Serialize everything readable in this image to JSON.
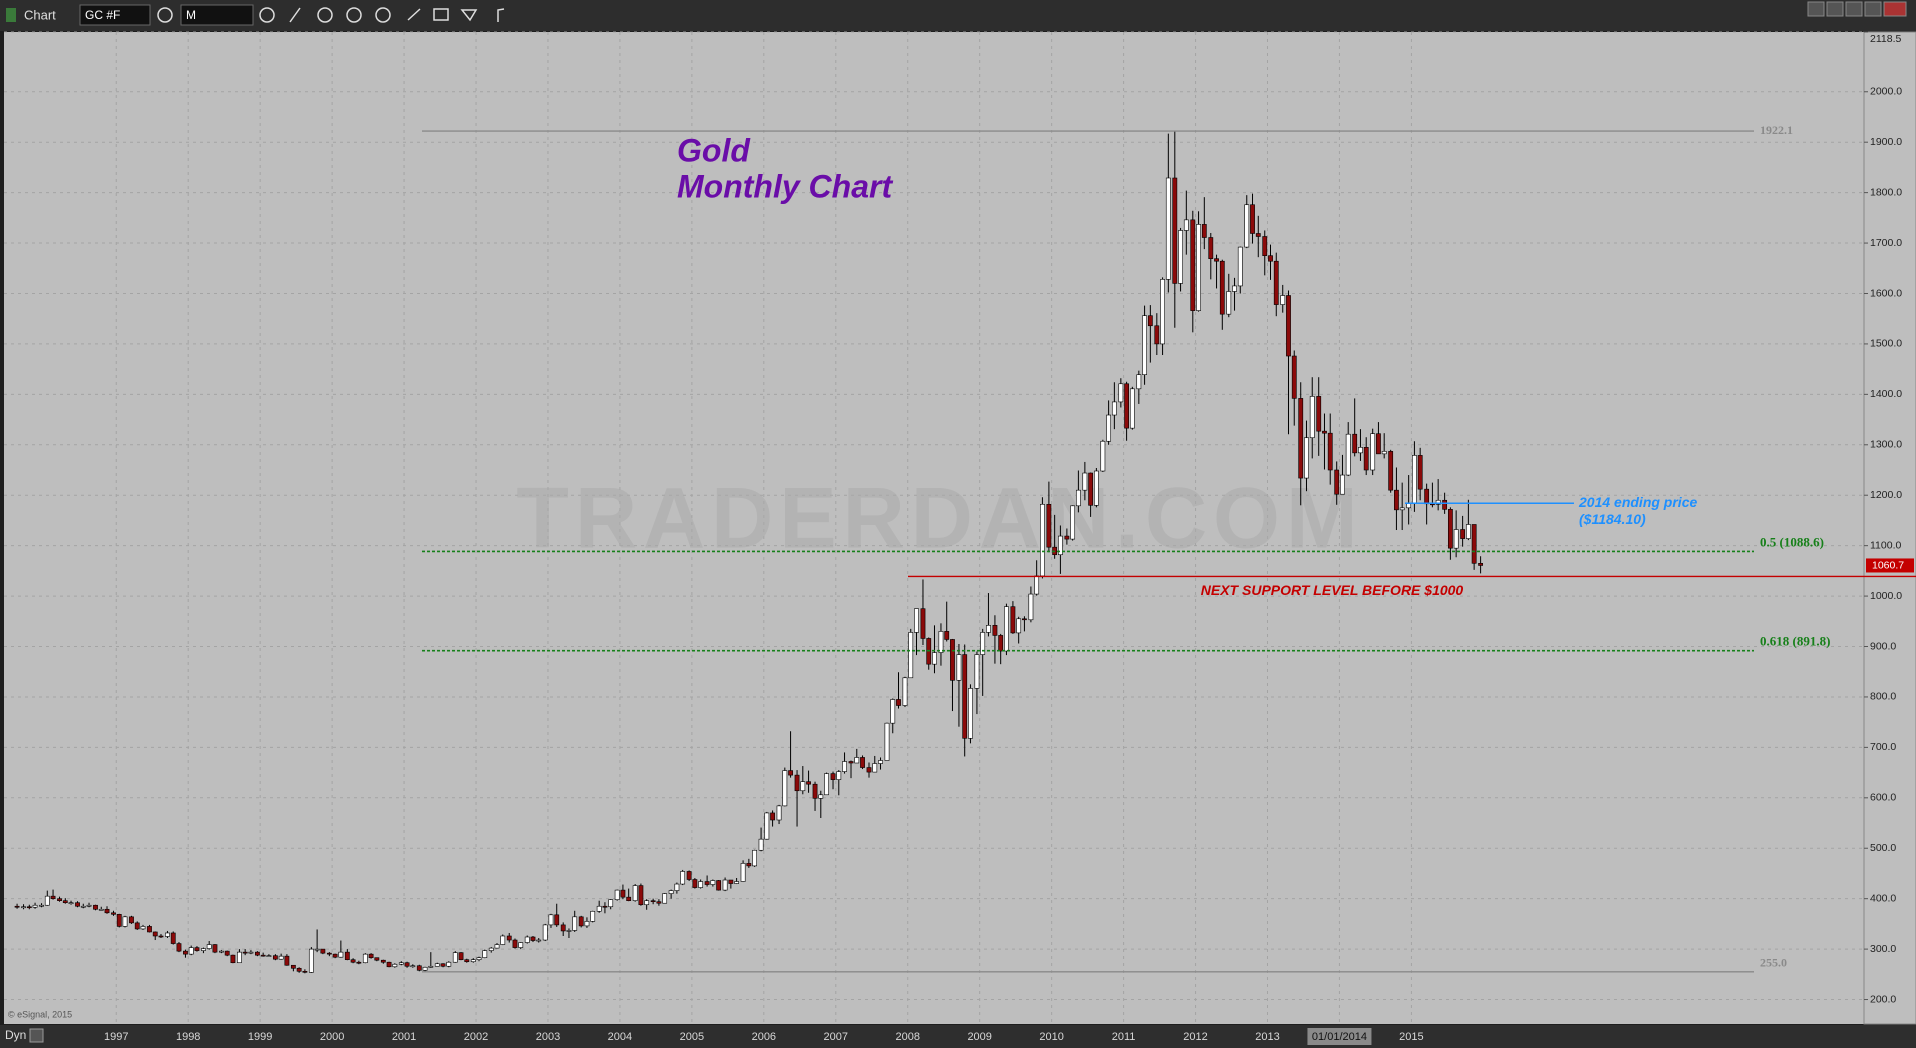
{
  "toolbar": {
    "app": "Chart",
    "symbol": "GC #F",
    "interval": "M"
  },
  "footer": {
    "copyright": "© eSignal, 2015",
    "mode": "Dyn"
  },
  "chart_data": {
    "type": "candlestick",
    "title": "Gold",
    "subtitle": "Monthly Chart",
    "watermark": "TRADERDAN.COM",
    "x": [
      1995.58,
      1995.67,
      1995.75,
      1995.83,
      1995.92,
      1996.0,
      1996.08,
      1996.17,
      1996.25,
      1996.33,
      1996.42,
      1996.5,
      1996.58,
      1996.67,
      1996.75,
      1996.83,
      1996.92,
      1997.0,
      1997.08,
      1997.17,
      1997.25,
      1997.33,
      1997.42,
      1997.5,
      1997.58,
      1997.67,
      1997.75,
      1997.83,
      1997.92,
      1998.0,
      1998.08,
      1998.17,
      1998.25,
      1998.33,
      1998.42,
      1998.5,
      1998.58,
      1998.67,
      1998.75,
      1998.83,
      1998.92,
      1999.0,
      1999.08,
      1999.17,
      1999.25,
      1999.33,
      1999.42,
      1999.5,
      1999.58,
      1999.67,
      1999.75,
      1999.83,
      1999.92,
      2000.0,
      2000.08,
      2000.17,
      2000.25,
      2000.33,
      2000.42,
      2000.5,
      2000.58,
      2000.67,
      2000.75,
      2000.83,
      2000.92,
      2001.0,
      2001.08,
      2001.17,
      2001.25,
      2001.33,
      2001.42,
      2001.5,
      2001.58,
      2001.67,
      2001.75,
      2001.83,
      2001.92,
      2002.0,
      2002.08,
      2002.17,
      2002.25,
      2002.33,
      2002.42,
      2002.5,
      2002.58,
      2002.67,
      2002.75,
      2002.83,
      2002.92,
      2003.0,
      2003.08,
      2003.17,
      2003.25,
      2003.33,
      2003.42,
      2003.5,
      2003.58,
      2003.67,
      2003.75,
      2003.83,
      2003.92,
      2004.0,
      2004.08,
      2004.17,
      2004.25,
      2004.33,
      2004.42,
      2004.5,
      2004.58,
      2004.67,
      2004.75,
      2004.83,
      2004.92,
      2005.0,
      2005.08,
      2005.17,
      2005.25,
      2005.33,
      2005.42,
      2005.5,
      2005.58,
      2005.67,
      2005.75,
      2005.83,
      2005.92,
      2006.0,
      2006.08,
      2006.17,
      2006.25,
      2006.33,
      2006.42,
      2006.5,
      2006.58,
      2006.67,
      2006.75,
      2006.83,
      2006.92,
      2007.0,
      2007.08,
      2007.17,
      2007.25,
      2007.33,
      2007.42,
      2007.5,
      2007.58,
      2007.67,
      2007.75,
      2007.83,
      2007.92,
      2008.0,
      2008.08,
      2008.17,
      2008.25,
      2008.33,
      2008.42,
      2008.5,
      2008.58,
      2008.67,
      2008.75,
      2008.83,
      2008.92,
      2009.0,
      2009.08,
      2009.17,
      2009.25,
      2009.33,
      2009.42,
      2009.5,
      2009.58,
      2009.67,
      2009.75,
      2009.83,
      2009.92,
      2010.0,
      2010.08,
      2010.17,
      2010.25,
      2010.33,
      2010.42,
      2010.5,
      2010.58,
      2010.67,
      2010.75,
      2010.83,
      2010.92,
      2011.0,
      2011.08,
      2011.17,
      2011.25,
      2011.33,
      2011.42,
      2011.5,
      2011.58,
      2011.67,
      2011.75,
      2011.83,
      2011.92,
      2012.0,
      2012.08,
      2012.17,
      2012.25,
      2012.33,
      2012.42,
      2012.5,
      2012.58,
      2012.67,
      2012.75,
      2012.83,
      2012.92,
      2013.0,
      2013.08,
      2013.17,
      2013.25,
      2013.33,
      2013.42,
      2013.5,
      2013.58,
      2013.67,
      2013.75,
      2013.83,
      2013.92,
      2014.0,
      2014.08,
      2014.17,
      2014.25,
      2014.33,
      2014.42,
      2014.5,
      2014.58,
      2014.67,
      2014.75,
      2014.83,
      2014.92,
      2015.0,
      2015.08,
      2015.17,
      2015.25,
      2015.33,
      2015.42,
      2015.5,
      2015.58,
      2015.67,
      2015.75,
      2015.83,
      2015.92
    ],
    "open": [
      385,
      384,
      384,
      383,
      387,
      387,
      405,
      400,
      396,
      392,
      392,
      385,
      385,
      387,
      379,
      379,
      372,
      369,
      345,
      364,
      352,
      340,
      345,
      334,
      326,
      325,
      332,
      311,
      296,
      290,
      303,
      297,
      301,
      309,
      294,
      296,
      288,
      273,
      294,
      292,
      294,
      288,
      287,
      287,
      280,
      286,
      268,
      262,
      256,
      254,
      300,
      300,
      292,
      290,
      284,
      294,
      279,
      274,
      273,
      290,
      283,
      278,
      274,
      265,
      270,
      273,
      266,
      267,
      258,
      264,
      266,
      271,
      266,
      274,
      293,
      279,
      275,
      279,
      283,
      297,
      302,
      309,
      326,
      318,
      303,
      313,
      324,
      317,
      318,
      348,
      368,
      348,
      336,
      337,
      364,
      346,
      355,
      375,
      385,
      384,
      398,
      417,
      403,
      396,
      426,
      388,
      396,
      394,
      391,
      410,
      416,
      429,
      454,
      438,
      422,
      434,
      428,
      436,
      417,
      437,
      430,
      434,
      470,
      465,
      496,
      518,
      570,
      556,
      584,
      654,
      645,
      614,
      632,
      627,
      599,
      606,
      648,
      636,
      652,
      672,
      669,
      680,
      660,
      651,
      668,
      674,
      748,
      795,
      783,
      838,
      928,
      975,
      916,
      865,
      888,
      930,
      914,
      833,
      884,
      718,
      817,
      884,
      928,
      942,
      922,
      891,
      979,
      927,
      955,
      953,
      1004,
      1040,
      1182,
      1097,
      1082,
      1119,
      1113,
      1179,
      1210,
      1244,
      1180,
      1248,
      1307,
      1359,
      1385,
      1421,
      1333,
      1411,
      1439,
      1556,
      1536,
      1500,
      1628,
      1829,
      1620,
      1725,
      1746,
      1566,
      1737,
      1711,
      1669,
      1664,
      1559,
      1604,
      1615,
      1692,
      1776,
      1719,
      1713,
      1675,
      1664,
      1578,
      1596,
      1476,
      1392,
      1234,
      1314,
      1396,
      1327,
      1323,
      1250,
      1202,
      1240,
      1321,
      1284,
      1295,
      1250,
      1322,
      1282,
      1287,
      1210,
      1171,
      1175,
      1184,
      1279,
      1212,
      1183,
      1182,
      1190,
      1172,
      1095,
      1132,
      1114,
      1142,
      1065
    ],
    "high": [
      390,
      389,
      388,
      392,
      391,
      416,
      418,
      404,
      401,
      396,
      395,
      390,
      392,
      388,
      384,
      385,
      376,
      370,
      366,
      366,
      355,
      348,
      348,
      335,
      330,
      336,
      335,
      314,
      299,
      307,
      306,
      303,
      316,
      310,
      298,
      297,
      289,
      300,
      300,
      298,
      296,
      293,
      290,
      290,
      291,
      290,
      268,
      264,
      260,
      304,
      339,
      300,
      294,
      291,
      317,
      300,
      282,
      277,
      292,
      292,
      283,
      279,
      275,
      272,
      276,
      275,
      270,
      269,
      265,
      294,
      273,
      272,
      276,
      296,
      294,
      281,
      282,
      285,
      299,
      304,
      312,
      329,
      332,
      321,
      314,
      327,
      326,
      322,
      350,
      370,
      390,
      353,
      341,
      376,
      366,
      363,
      376,
      396,
      393,
      399,
      418,
      428,
      420,
      429,
      430,
      399,
      400,
      399,
      411,
      418,
      432,
      457,
      456,
      441,
      438,
      446,
      438,
      437,
      442,
      437,
      441,
      476,
      479,
      497,
      541,
      572,
      575,
      586,
      660,
      732,
      655,
      663,
      654,
      632,
      614,
      650,
      652,
      655,
      690,
      674,
      697,
      684,
      670,
      683,
      680,
      749,
      797,
      849,
      840,
      935,
      975,
      1033,
      918,
      942,
      946,
      989,
      915,
      905,
      904,
      825,
      890,
      935,
      1006,
      962,
      925,
      985,
      990,
      959,
      960,
      1019,
      1071,
      1196,
      1227,
      1161,
      1140,
      1134,
      1180,
      1249,
      1266,
      1245,
      1254,
      1310,
      1388,
      1424,
      1432,
      1425,
      1415,
      1447,
      1576,
      1577,
      1561,
      1632,
      1917,
      1923,
      1730,
      1804,
      1764,
      1763,
      1791,
      1720,
      1677,
      1667,
      1639,
      1631,
      1693,
      1795,
      1798,
      1754,
      1725,
      1697,
      1681,
      1617,
      1606,
      1487,
      1424,
      1348,
      1434,
      1434,
      1362,
      1362,
      1267,
      1280,
      1345,
      1392,
      1331,
      1315,
      1332,
      1345,
      1323,
      1290,
      1255,
      1225,
      1240,
      1307,
      1294,
      1223,
      1225,
      1232,
      1205,
      1176,
      1170,
      1159,
      1191,
      1142,
      1079
    ],
    "low": [
      380,
      379,
      379,
      380,
      383,
      386,
      398,
      394,
      390,
      388,
      383,
      381,
      383,
      377,
      377,
      370,
      366,
      343,
      343,
      350,
      338,
      338,
      333,
      318,
      322,
      322,
      309,
      294,
      283,
      288,
      295,
      292,
      299,
      292,
      292,
      286,
      272,
      273,
      288,
      290,
      286,
      285,
      285,
      278,
      279,
      267,
      256,
      253,
      252,
      253,
      294,
      290,
      286,
      282,
      283,
      278,
      272,
      270,
      272,
      281,
      276,
      271,
      264,
      263,
      268,
      263,
      263,
      256,
      255,
      263,
      266,
      264,
      264,
      273,
      278,
      273,
      273,
      276,
      282,
      293,
      301,
      308,
      313,
      301,
      300,
      311,
      314,
      313,
      316,
      342,
      344,
      326,
      322,
      334,
      343,
      342,
      353,
      372,
      371,
      379,
      396,
      399,
      395,
      394,
      386,
      378,
      389,
      386,
      391,
      400,
      410,
      427,
      435,
      420,
      420,
      424,
      424,
      416,
      415,
      420,
      429,
      433,
      461,
      463,
      494,
      517,
      543,
      548,
      583,
      640,
      543,
      607,
      610,
      574,
      560,
      606,
      617,
      605,
      648,
      639,
      669,
      657,
      640,
      651,
      656,
      674,
      728,
      777,
      780,
      838,
      883,
      903,
      854,
      847,
      862,
      910,
      772,
      741,
      682,
      708,
      766,
      802,
      920,
      866,
      865,
      883,
      925,
      906,
      930,
      948,
      1001,
      1035,
      1087,
      1074,
      1044,
      1102,
      1110,
      1166,
      1190,
      1157,
      1176,
      1246,
      1300,
      1331,
      1374,
      1308,
      1330,
      1381,
      1419,
      1463,
      1478,
      1478,
      1602,
      1532,
      1604,
      1677,
      1523,
      1564,
      1688,
      1628,
      1610,
      1528,
      1553,
      1566,
      1600,
      1690,
      1699,
      1672,
      1636,
      1627,
      1555,
      1562,
      1321,
      1338,
      1180,
      1208,
      1273,
      1278,
      1251,
      1221,
      1181,
      1202,
      1238,
      1277,
      1268,
      1240,
      1240,
      1282,
      1273,
      1205,
      1131,
      1131,
      1142,
      1167,
      1190,
      1142,
      1176,
      1170,
      1163,
      1072,
      1077,
      1098,
      1111,
      1052,
      1045
    ],
    "close": [
      384,
      384,
      383,
      387,
      387,
      405,
      400,
      396,
      392,
      392,
      385,
      385,
      387,
      379,
      379,
      372,
      369,
      345,
      364,
      352,
      340,
      345,
      334,
      326,
      325,
      332,
      311,
      296,
      290,
      303,
      297,
      301,
      309,
      294,
      296,
      288,
      273,
      294,
      292,
      294,
      288,
      287,
      287,
      280,
      286,
      268,
      262,
      256,
      254,
      300,
      300,
      292,
      290,
      284,
      294,
      279,
      274,
      273,
      290,
      283,
      278,
      274,
      265,
      270,
      273,
      266,
      267,
      258,
      264,
      266,
      271,
      266,
      274,
      293,
      279,
      275,
      279,
      283,
      297,
      302,
      309,
      326,
      318,
      303,
      313,
      324,
      317,
      318,
      348,
      368,
      348,
      336,
      337,
      364,
      346,
      355,
      375,
      385,
      384,
      398,
      417,
      403,
      396,
      426,
      388,
      396,
      394,
      391,
      410,
      416,
      429,
      454,
      438,
      422,
      434,
      428,
      436,
      417,
      437,
      430,
      434,
      470,
      465,
      496,
      518,
      570,
      556,
      584,
      654,
      645,
      614,
      632,
      627,
      599,
      606,
      648,
      636,
      652,
      672,
      669,
      680,
      660,
      651,
      668,
      674,
      748,
      795,
      783,
      838,
      928,
      975,
      916,
      865,
      888,
      930,
      914,
      833,
      884,
      718,
      817,
      884,
      928,
      942,
      922,
      891,
      979,
      927,
      955,
      953,
      1004,
      1040,
      1182,
      1097,
      1082,
      1119,
      1113,
      1179,
      1210,
      1244,
      1180,
      1248,
      1307,
      1359,
      1385,
      1421,
      1333,
      1411,
      1439,
      1556,
      1536,
      1500,
      1628,
      1829,
      1620,
      1725,
      1746,
      1566,
      1737,
      1711,
      1669,
      1664,
      1559,
      1604,
      1615,
      1692,
      1776,
      1719,
      1713,
      1675,
      1664,
      1578,
      1596,
      1476,
      1392,
      1234,
      1314,
      1396,
      1327,
      1323,
      1250,
      1202,
      1240,
      1321,
      1284,
      1295,
      1250,
      1322,
      1282,
      1287,
      1210,
      1171,
      1175,
      1184,
      1279,
      1212,
      1183,
      1182,
      1190,
      1172,
      1095,
      1132,
      1114,
      1142,
      1065,
      1060.7
    ],
    "up_color": "#ffffff",
    "down_color": "#8b0a0a",
    "wick_color": "#000000",
    "last_price_color": "#c40000",
    "xlim": [
      1995.44,
      2021.29
    ],
    "ylim": [
      151.5,
      2118.5
    ],
    "xticks": [
      1997,
      1998,
      1999,
      2000,
      2001,
      2002,
      2003,
      2004,
      2005,
      2006,
      2007,
      2008,
      2009,
      2010,
      2011,
      2012,
      2013,
      {
        "value": 2014,
        "label": "01/01/2014"
      },
      2015
    ],
    "yticks": [
      {
        "value": 200,
        "label": "200.0"
      },
      {
        "value": 300,
        "label": "300.0"
      },
      {
        "value": 400,
        "label": "400.0"
      },
      {
        "value": 500,
        "label": "500.0"
      },
      {
        "value": 600,
        "label": "600.0"
      },
      {
        "value": 700,
        "label": "700.0"
      },
      {
        "value": 800,
        "label": "800.0"
      },
      {
        "value": 900,
        "label": "900.0"
      },
      {
        "value": 1000,
        "label": "1000.0"
      },
      {
        "value": 1100,
        "label": "1100.0"
      },
      {
        "value": 1200,
        "label": "1200.0"
      },
      {
        "value": 1300,
        "label": "1300.0"
      },
      {
        "value": 1400,
        "label": "1400.0"
      },
      {
        "value": 1500,
        "label": "1500.0"
      },
      {
        "value": 1600,
        "label": "1600.0"
      },
      {
        "value": 1700,
        "label": "1700.0"
      },
      {
        "value": 1800,
        "label": "1800.0"
      },
      {
        "value": 1900,
        "label": "1900.0"
      },
      {
        "value": 2000,
        "label": "2000.0"
      },
      {
        "value": 2118.5,
        "label": "2118.5"
      }
    ],
    "grid": true,
    "annotations": [
      {
        "value": 1922.1,
        "label": "1922.1",
        "color": "#8a8a8a"
      },
      {
        "value": 1088.6,
        "label": "0.5 (1088.6)",
        "color": "#17801a",
        "style": "dotted"
      },
      {
        "value": 1039,
        "label": "NEXT SUPPORT LEVEL BEFORE $1000",
        "color": "#c40000"
      },
      {
        "value": 1184.1,
        "label": "2014 ending price",
        "sublabel": "($1184.10)",
        "color": "#1e90ff"
      },
      {
        "value": 891.8,
        "label": "0.618 (891.8)",
        "color": "#17801a",
        "style": "dotted"
      },
      {
        "value": 255,
        "label": "255.0",
        "color": "#8a8a8a"
      }
    ]
  }
}
